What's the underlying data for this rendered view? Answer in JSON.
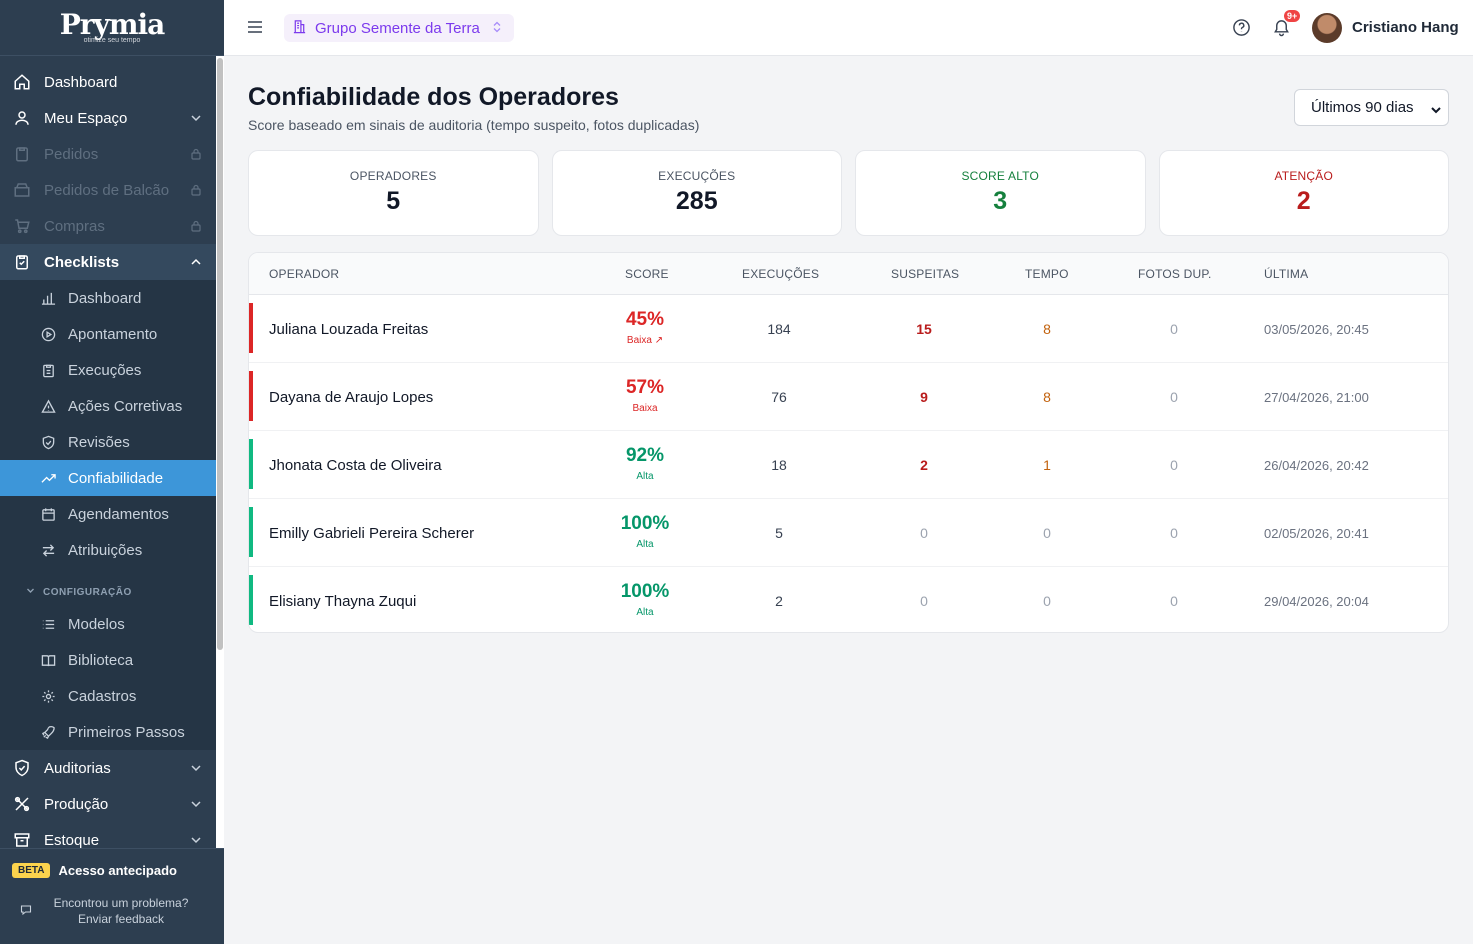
{
  "brand": {
    "logo_text": "Prymia",
    "tagline": "otimize seu tempo"
  },
  "sidebar": {
    "items": [
      {
        "label": "Dashboard",
        "icon": "home-icon"
      },
      {
        "label": "Meu Espaço",
        "icon": "user-icon"
      },
      {
        "label": "Pedidos",
        "icon": "clipboard-icon",
        "disabled": true
      },
      {
        "label": "Pedidos de Balcão",
        "icon": "store-icon",
        "disabled": true
      },
      {
        "label": "Compras",
        "icon": "cart-icon",
        "disabled": true
      },
      {
        "label": "Checklists",
        "icon": "checklist-icon"
      }
    ],
    "checklists_sub": [
      {
        "label": "Dashboard",
        "icon": "bar-chart-icon"
      },
      {
        "label": "Apontamento",
        "icon": "play-circle-icon"
      },
      {
        "label": "Execuções",
        "icon": "clipboard-list-icon"
      },
      {
        "label": "Ações Corretivas",
        "icon": "warning-icon"
      },
      {
        "label": "Revisões",
        "icon": "shield-check-icon"
      },
      {
        "label": "Confiabilidade",
        "icon": "trending-up-icon",
        "active": true
      },
      {
        "label": "Agendamentos",
        "icon": "calendar-icon"
      },
      {
        "label": "Atribuições",
        "icon": "arrows-icon"
      }
    ],
    "config_label": "CONFIGURAÇÃO",
    "config_sub": [
      {
        "label": "Modelos",
        "icon": "list-icon"
      },
      {
        "label": "Biblioteca",
        "icon": "book-icon"
      },
      {
        "label": "Cadastros",
        "icon": "gear-icon"
      },
      {
        "label": "Primeiros Passos",
        "icon": "rocket-icon"
      }
    ],
    "bottom_items": [
      {
        "label": "Auditorias",
        "icon": "shield-icon"
      },
      {
        "label": "Produção",
        "icon": "tools-icon"
      },
      {
        "label": "Estoque",
        "icon": "archive-icon"
      }
    ],
    "footer": {
      "beta_badge": "BETA",
      "beta_text": "Acesso antecipado",
      "feedback_line1": "Encontrou um problema?",
      "feedback_line2": "Enviar feedback"
    }
  },
  "topbar": {
    "org_name": "Grupo Semente da Terra",
    "notification_count": "9+",
    "user_name": "Cristiano Hang"
  },
  "page": {
    "title": "Confiabilidade dos Operadores",
    "subtitle": "Score baseado em sinais de auditoria (tempo suspeito, fotos duplicadas)",
    "period": "Últimos 90 dias"
  },
  "stats": [
    {
      "label": "OPERADORES",
      "value": "5"
    },
    {
      "label": "EXECUÇÕES",
      "value": "285"
    },
    {
      "label": "SCORE ALTO",
      "value": "3"
    },
    {
      "label": "ATENÇÃO",
      "value": "2"
    }
  ],
  "table": {
    "headers": {
      "operator": "OPERADOR",
      "score": "SCORE",
      "executions": "EXECUÇÕES",
      "suspicious": "SUSPEITAS",
      "time": "TEMPO",
      "dup_photos": "FOTOS DUP.",
      "last": "ÚLTIMA"
    },
    "rows": [
      {
        "name": "Juliana Louzada Freitas",
        "score": "45%",
        "score_label": "Baixa ↗",
        "level": "low",
        "executions": "184",
        "suspicious": "15",
        "time": "8",
        "dup_photos": "0",
        "last": "03/05/2026, 20:45"
      },
      {
        "name": "Dayana de Araujo Lopes",
        "score": "57%",
        "score_label": "Baixa",
        "level": "low",
        "executions": "76",
        "suspicious": "9",
        "time": "8",
        "dup_photos": "0",
        "last": "27/04/2026, 21:00"
      },
      {
        "name": "Jhonata Costa de Oliveira",
        "score": "92%",
        "score_label": "Alta",
        "level": "high",
        "executions": "18",
        "suspicious": "2",
        "time": "1",
        "dup_photos": "0",
        "last": "26/04/2026, 20:42"
      },
      {
        "name": "Emilly Gabrieli Pereira Scherer",
        "score": "100%",
        "score_label": "Alta",
        "level": "high",
        "executions": "5",
        "suspicious": "0",
        "time": "0",
        "dup_photos": "0",
        "last": "02/05/2026, 20:41"
      },
      {
        "name": "Elisiany Thayna Zuqui",
        "score": "100%",
        "score_label": "Alta",
        "level": "high",
        "executions": "2",
        "suspicious": "0",
        "time": "0",
        "dup_photos": "0",
        "last": "29/04/2026, 20:04"
      }
    ]
  },
  "colors": {
    "sidebar_bg": "#2d3e50",
    "active_item": "#3d96d9",
    "high": "#059669",
    "low": "#dc2626",
    "accent_purple": "#7c3aed"
  }
}
